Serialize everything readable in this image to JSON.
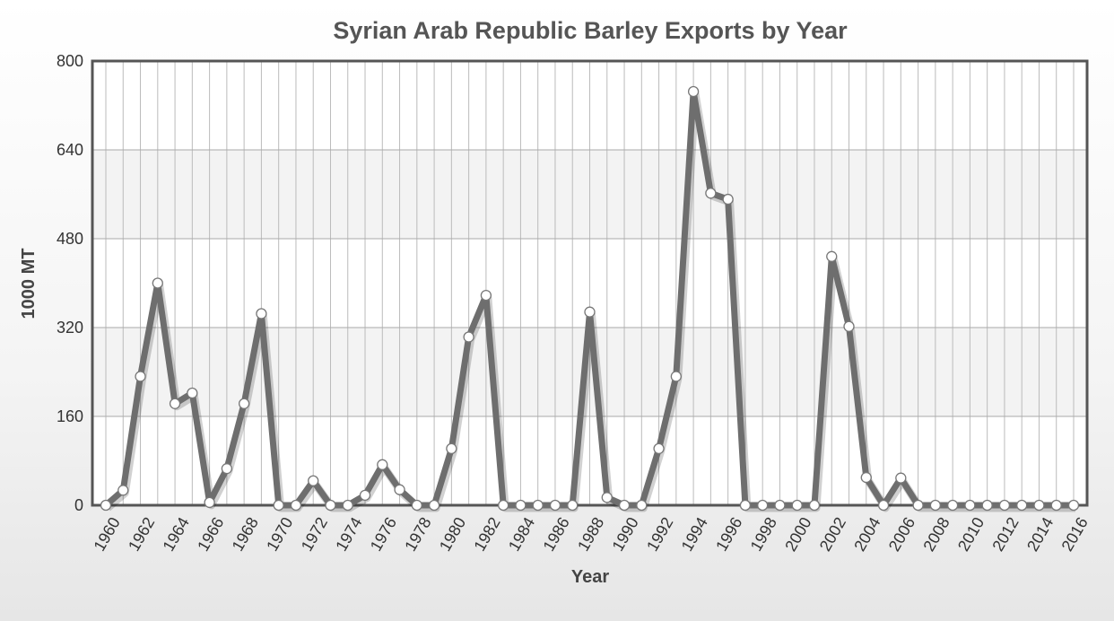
{
  "chart_data": {
    "type": "line",
    "title": "Syrian Arab Republic Barley Exports by Year",
    "xlabel": "Year",
    "ylabel": "1000 MT",
    "ylim": [
      0,
      800
    ],
    "yticks": [
      0,
      160,
      320,
      480,
      640,
      800
    ],
    "xlim": [
      1960,
      2016
    ],
    "xticks": [
      1960,
      1962,
      1964,
      1966,
      1968,
      1970,
      1972,
      1974,
      1976,
      1978,
      1980,
      1982,
      1984,
      1986,
      1988,
      1990,
      1992,
      1994,
      1996,
      1998,
      2000,
      2002,
      2004,
      2006,
      2008,
      2010,
      2012,
      2014,
      2016
    ],
    "grid": true,
    "legend": "none",
    "colors": {
      "line": "#6e6e6e",
      "marker_fill": "#ffffff",
      "grid": "#bbbbbb",
      "plot_border": "#555555",
      "band": "#f3f3f3"
    },
    "series": [
      {
        "x": [
          1960,
          1961,
          1962,
          1963,
          1964,
          1965,
          1966,
          1967,
          1968,
          1969,
          1970,
          1971,
          1972,
          1973,
          1974,
          1975,
          1976,
          1977,
          1978,
          1979,
          1980,
          1981,
          1982,
          1983,
          1984,
          1985,
          1986,
          1987,
          1988,
          1989,
          1990,
          1991,
          1992,
          1993,
          1994,
          1995,
          1996,
          1997,
          1998,
          1999,
          2000,
          2001,
          2002,
          2003,
          2004,
          2005,
          2006,
          2007,
          2008,
          2009,
          2010,
          2011,
          2012,
          2013,
          2014,
          2015,
          2016
        ],
        "values": [
          0,
          27,
          232,
          400,
          183,
          202,
          5,
          66,
          183,
          345,
          0,
          0,
          44,
          0,
          0,
          18,
          73,
          28,
          0,
          0,
          102,
          303,
          378,
          0,
          0,
          0,
          0,
          0,
          348,
          14,
          0,
          0,
          102,
          232,
          745,
          562,
          551,
          0,
          0,
          0,
          0,
          0,
          448,
          322,
          50,
          0,
          49,
          0,
          0,
          0,
          0,
          0,
          0,
          0,
          0,
          0,
          0
        ]
      }
    ]
  }
}
